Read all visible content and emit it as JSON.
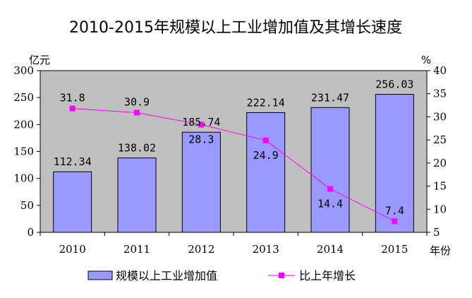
{
  "chart_data": {
    "type": "bar",
    "title": "2010-2015年规模以上工业增加值及其增长速度",
    "categories": [
      "2010",
      "2011",
      "2012",
      "2013",
      "2014",
      "2015"
    ],
    "x_unit": "年份",
    "y_left": {
      "unit": "亿元",
      "ylim": [
        0,
        300
      ],
      "ticks": [
        0,
        50,
        100,
        150,
        200,
        250,
        300
      ]
    },
    "y_right": {
      "unit": "%",
      "ylim": [
        5,
        40
      ],
      "ticks": [
        5,
        10,
        15,
        20,
        25,
        30,
        35,
        40
      ]
    },
    "series": [
      {
        "name": "规模以上工业增加值",
        "type": "bar",
        "axis": "left",
        "values": [
          112.34,
          138.02,
          185.74,
          222.14,
          231.47,
          256.03
        ],
        "labels": [
          "112.34",
          "138.02",
          "185.74",
          "222.14",
          "231.47",
          "256.03"
        ],
        "color": "#9999ff"
      },
      {
        "name": "比上年增长",
        "type": "line",
        "axis": "right",
        "values": [
          31.8,
          30.9,
          28.3,
          24.9,
          14.4,
          7.4
        ],
        "labels": [
          "31.8",
          "30.9",
          "28.3",
          "24.9",
          "14.4",
          "7.4"
        ],
        "color": "#ff00ff"
      }
    ],
    "plot_background": "#c0c0c0",
    "grid": false,
    "legend_position": "bottom"
  }
}
